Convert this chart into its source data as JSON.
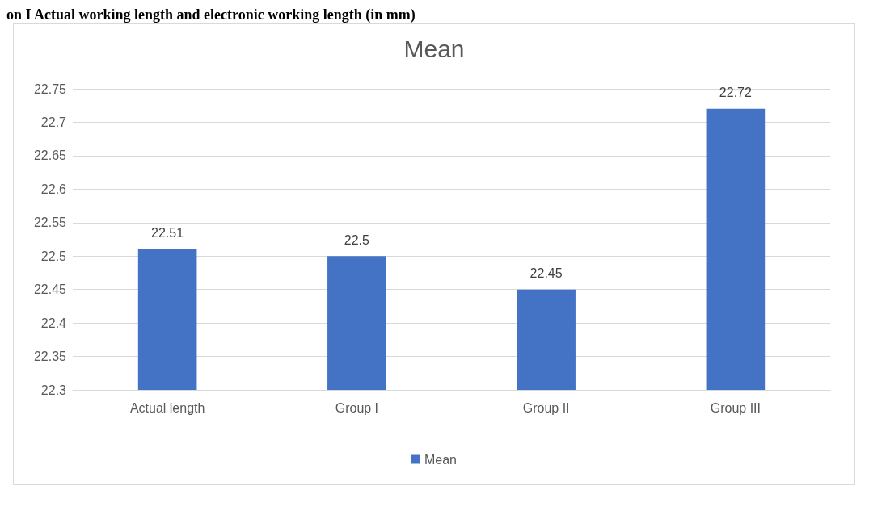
{
  "chart_data": {
    "type": "bar",
    "title": "Mean",
    "annotations": [
      "on I Actual working length and electronic working length (in mm)"
    ],
    "categories": [
      "Actual length",
      "Group I",
      "Group II",
      "Group III"
    ],
    "series": [
      {
        "name": "Mean",
        "color": "#4472c4",
        "values": [
          22.51,
          22.5,
          22.45,
          22.72
        ]
      }
    ],
    "ylim": [
      22.3,
      22.75
    ],
    "yticks": [
      22.3,
      22.35,
      22.4,
      22.45,
      22.5,
      22.55,
      22.6,
      22.65,
      22.7,
      22.75
    ],
    "grid": "y",
    "legend": "bottom",
    "data_labels": true
  }
}
